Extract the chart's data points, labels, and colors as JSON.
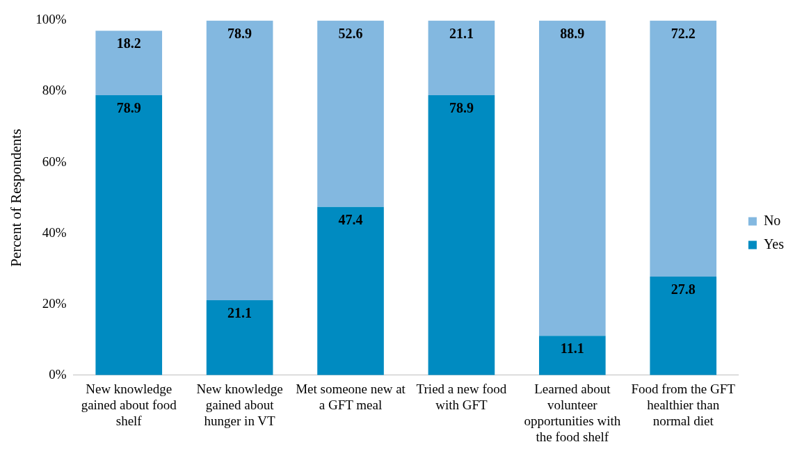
{
  "chart_data": {
    "type": "bar",
    "stacked": true,
    "ylabel": "Percent of Respondents",
    "categories": [
      "New knowledge gained about food shelf",
      "New knowledge gained about hunger in VT",
      "Met someone new at a GFT meal",
      "Tried a new food with GFT",
      "Learned about volunteer opportunities with the food shelf",
      "Food from the GFT healthier than normal diet"
    ],
    "series": [
      {
        "name": "Yes",
        "color": "#008bc1",
        "values": [
          78.9,
          21.1,
          47.4,
          78.9,
          11.1,
          27.8
        ]
      },
      {
        "name": "No",
        "color": "#83b8e0",
        "values": [
          18.2,
          78.9,
          52.6,
          21.1,
          88.9,
          72.2
        ]
      }
    ],
    "ylim": [
      0,
      100
    ],
    "yticks": [
      {
        "value": 0,
        "label": "0%"
      },
      {
        "value": 20,
        "label": "20%"
      },
      {
        "value": 40,
        "label": "40%"
      },
      {
        "value": 60,
        "label": "60%"
      },
      {
        "value": 80,
        "label": "80%"
      },
      {
        "value": 100,
        "label": "100%"
      }
    ],
    "grid": false,
    "legend": "right",
    "data_labels": true
  }
}
